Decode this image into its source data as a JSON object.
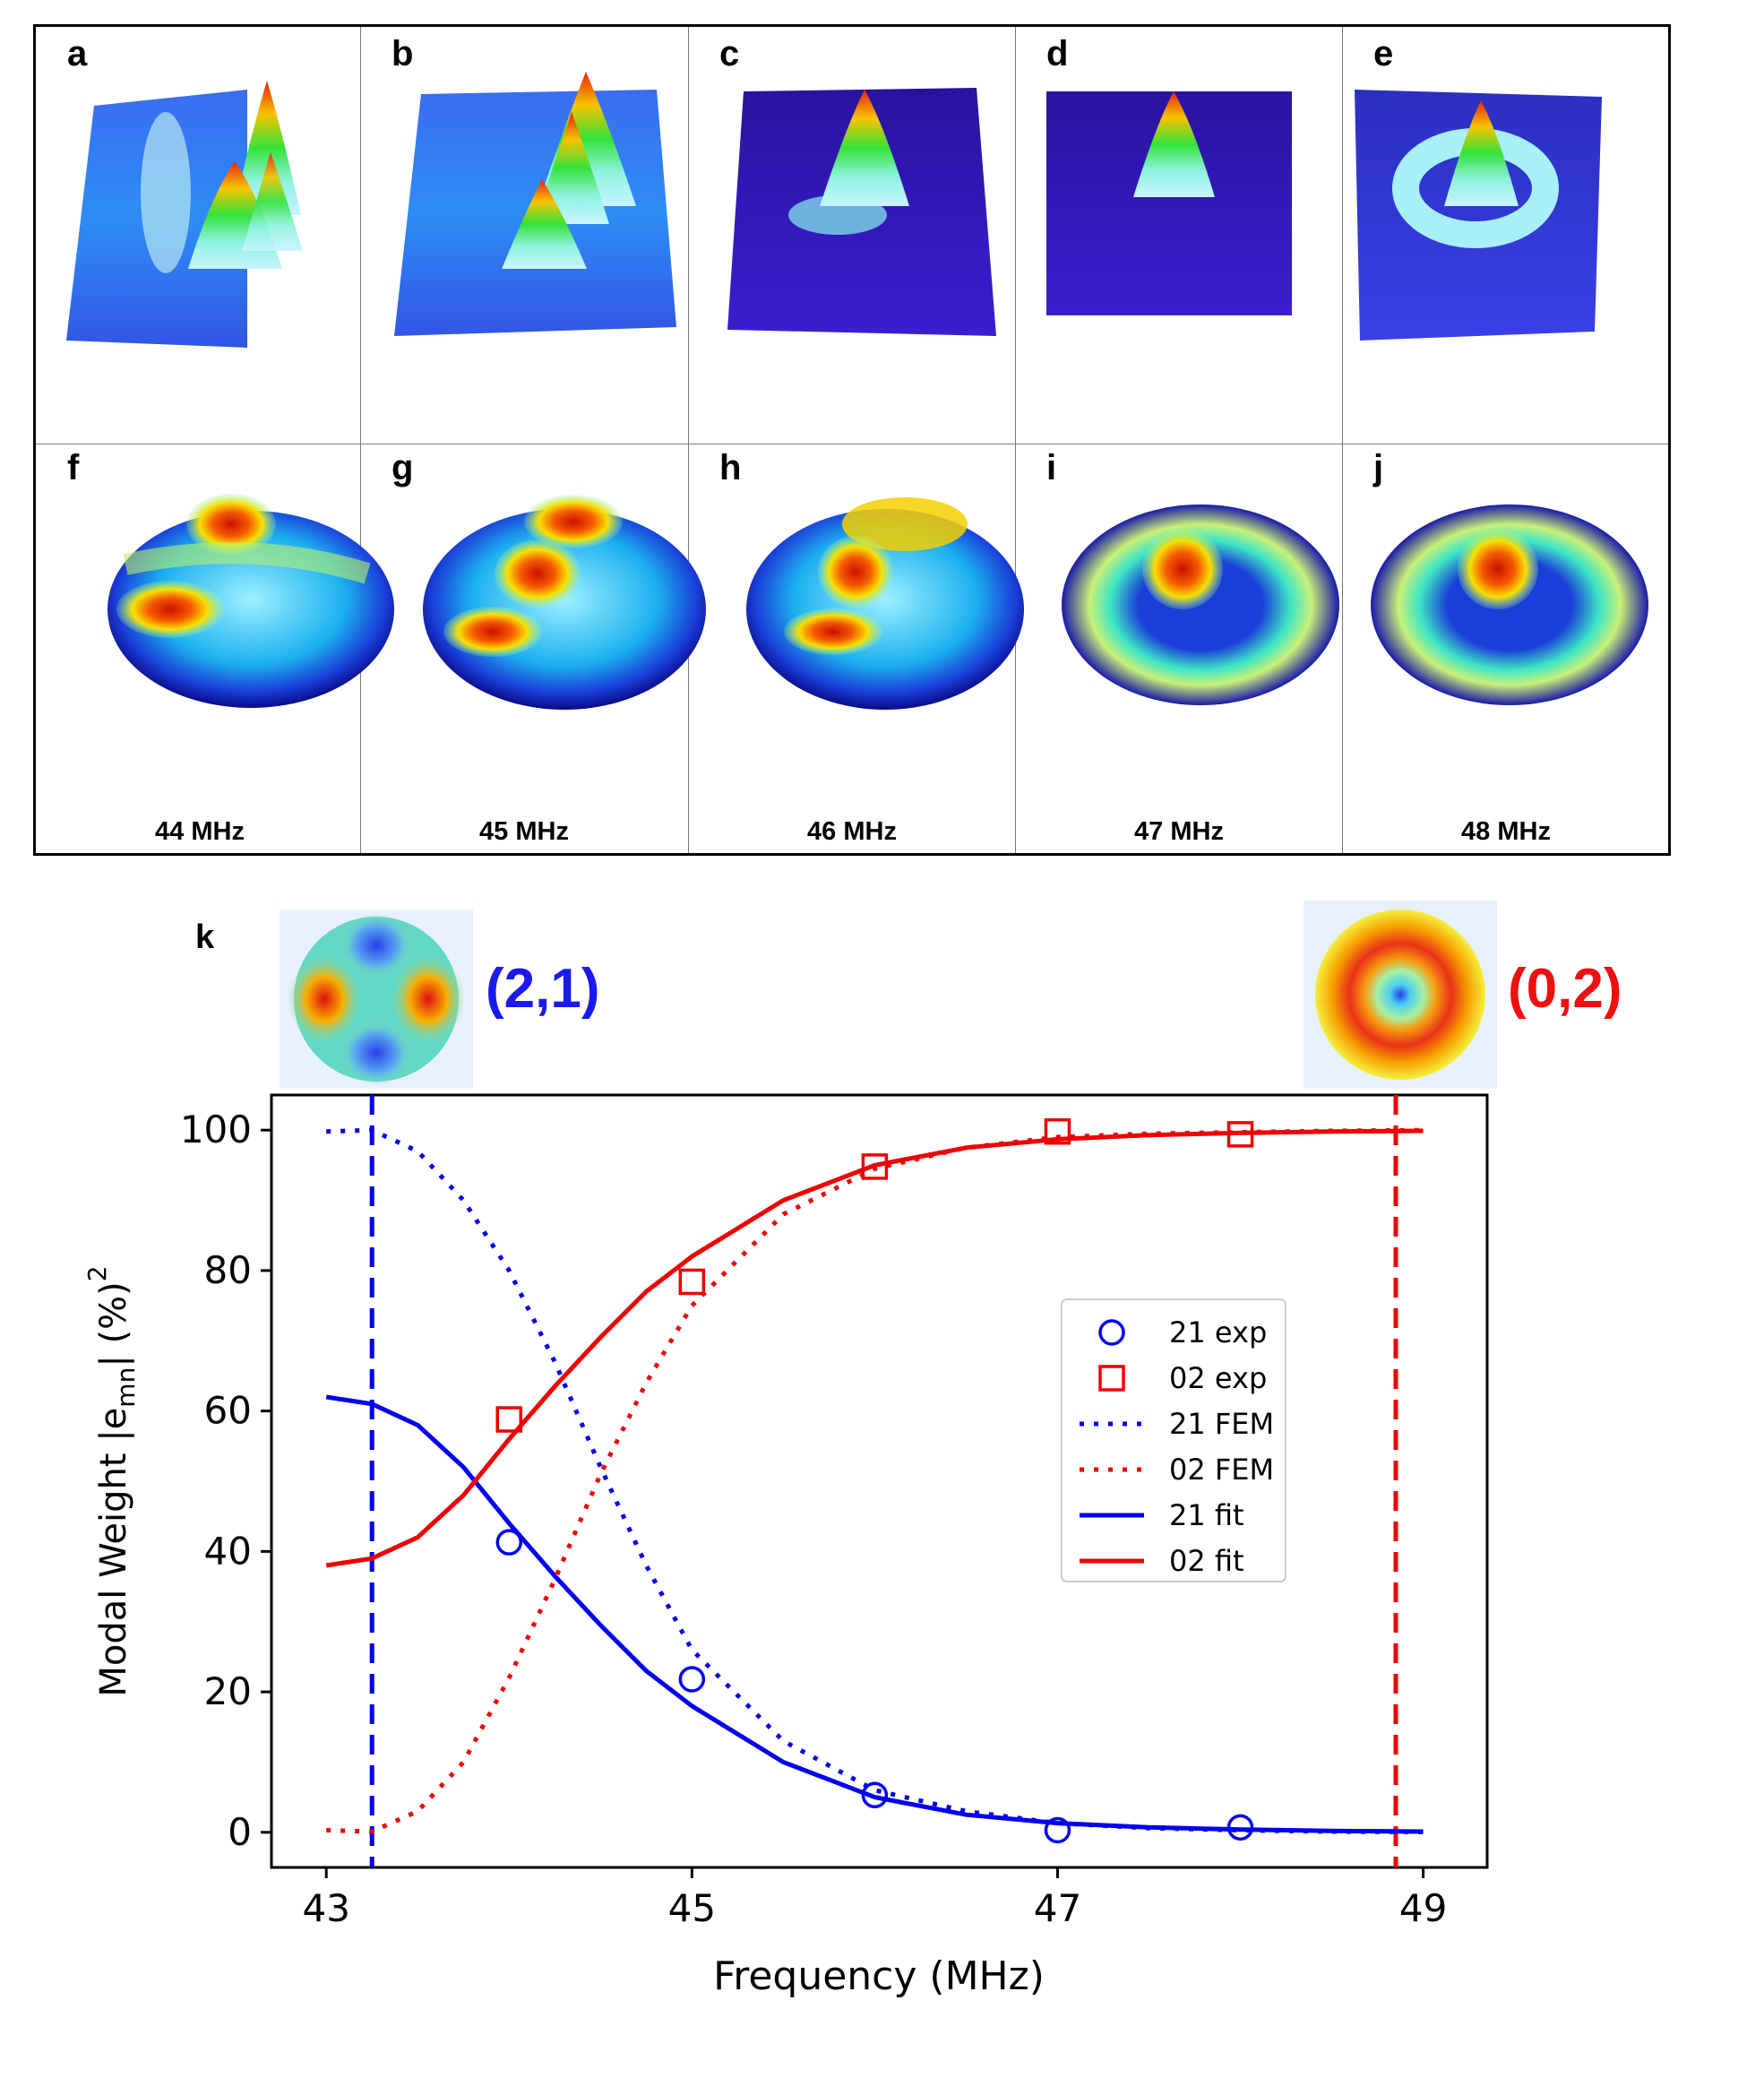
{
  "panels_top": [
    "a",
    "b",
    "c",
    "d",
    "e"
  ],
  "panels_bottom": [
    "f",
    "g",
    "h",
    "i",
    "j"
  ],
  "frequencies": [
    "44 MHz",
    "45 MHz",
    "46 MHz",
    "47 MHz",
    "48 MHz"
  ],
  "panel_k": "k",
  "mode_left": {
    "label": "(2,1)",
    "color": "#1a1aee"
  },
  "mode_right": {
    "label": "(0,2)",
    "color": "#ee1111"
  },
  "chart_data": {
    "type": "scatter",
    "title": "",
    "xlabel": "Frequency (MHz)",
    "ylabel_prefix": "Modal Weight |e",
    "ylabel_sub": "mn",
    "ylabel_sup": "2",
    "ylabel_suffix": "| (%)",
    "xlim": [
      42.7,
      49.35
    ],
    "ylim": [
      -5,
      105
    ],
    "xticks": [
      43,
      45,
      47,
      49
    ],
    "yticks": [
      0,
      20,
      40,
      60,
      80,
      100
    ],
    "vlines": [
      {
        "x": 43.25,
        "color": "#0000ee",
        "style": "dashed"
      },
      {
        "x": 48.85,
        "color": "#ee0000",
        "style": "dashed"
      }
    ],
    "series": [
      {
        "name": "21 exp",
        "kind": "circle",
        "color": "#0000ee",
        "x": [
          44,
          45,
          46,
          47,
          48
        ],
        "y": [
          41.3,
          21.8,
          5.3,
          0.3,
          0.7
        ]
      },
      {
        "name": "02 exp",
        "kind": "square",
        "color": "#ee0000",
        "x": [
          44,
          45,
          46,
          47,
          48
        ],
        "y": [
          58.8,
          78.4,
          94.8,
          99.8,
          99.4
        ]
      },
      {
        "name": "21 FEM",
        "kind": "dotted",
        "color": "#0000ee",
        "x": [
          43,
          43.25,
          43.5,
          43.75,
          44,
          44.25,
          44.5,
          44.75,
          45,
          45.5,
          46,
          46.5,
          47,
          47.5,
          48,
          48.5,
          49
        ],
        "y": [
          99.8,
          100,
          97,
          90,
          80,
          67,
          52,
          38,
          26,
          13,
          6,
          3,
          1.3,
          0.6,
          0.3,
          0.1,
          0.05
        ]
      },
      {
        "name": "02 FEM",
        "kind": "dotted",
        "color": "#ee0000",
        "x": [
          43,
          43.25,
          43.5,
          43.75,
          44,
          44.25,
          44.5,
          44.75,
          45,
          45.5,
          46,
          46.5,
          47,
          47.5,
          48,
          48.5,
          49
        ],
        "y": [
          0.3,
          0.1,
          3,
          10,
          22,
          36,
          51,
          64,
          75,
          88,
          94.5,
          97.5,
          99,
          99.5,
          99.7,
          99.9,
          100
        ]
      },
      {
        "name": "21 fit",
        "kind": "solid",
        "color": "#0000ee",
        "x": [
          43,
          43.25,
          43.5,
          43.75,
          44,
          44.25,
          44.5,
          44.75,
          45,
          45.5,
          46,
          46.5,
          47,
          47.5,
          48,
          48.5,
          49
        ],
        "y": [
          62,
          61,
          58,
          52,
          44,
          36.5,
          29.5,
          23,
          18,
          10,
          5,
          2.5,
          1.3,
          0.7,
          0.4,
          0.2,
          0.1
        ]
      },
      {
        "name": "02 fit",
        "kind": "solid",
        "color": "#ee0000",
        "x": [
          43,
          43.25,
          43.5,
          43.75,
          44,
          44.25,
          44.5,
          44.75,
          45,
          45.5,
          46,
          46.5,
          47,
          47.5,
          48,
          48.5,
          49
        ],
        "y": [
          38,
          39,
          42,
          48,
          56,
          63.5,
          70.5,
          77,
          82,
          90,
          95,
          97.5,
          98.7,
          99.3,
          99.6,
          99.8,
          99.9
        ]
      }
    ],
    "legend": [
      "21 exp",
      "02 exp",
      "21 FEM",
      "02 FEM",
      "21 fit",
      "02 fit"
    ],
    "legend_position": "center-right"
  }
}
